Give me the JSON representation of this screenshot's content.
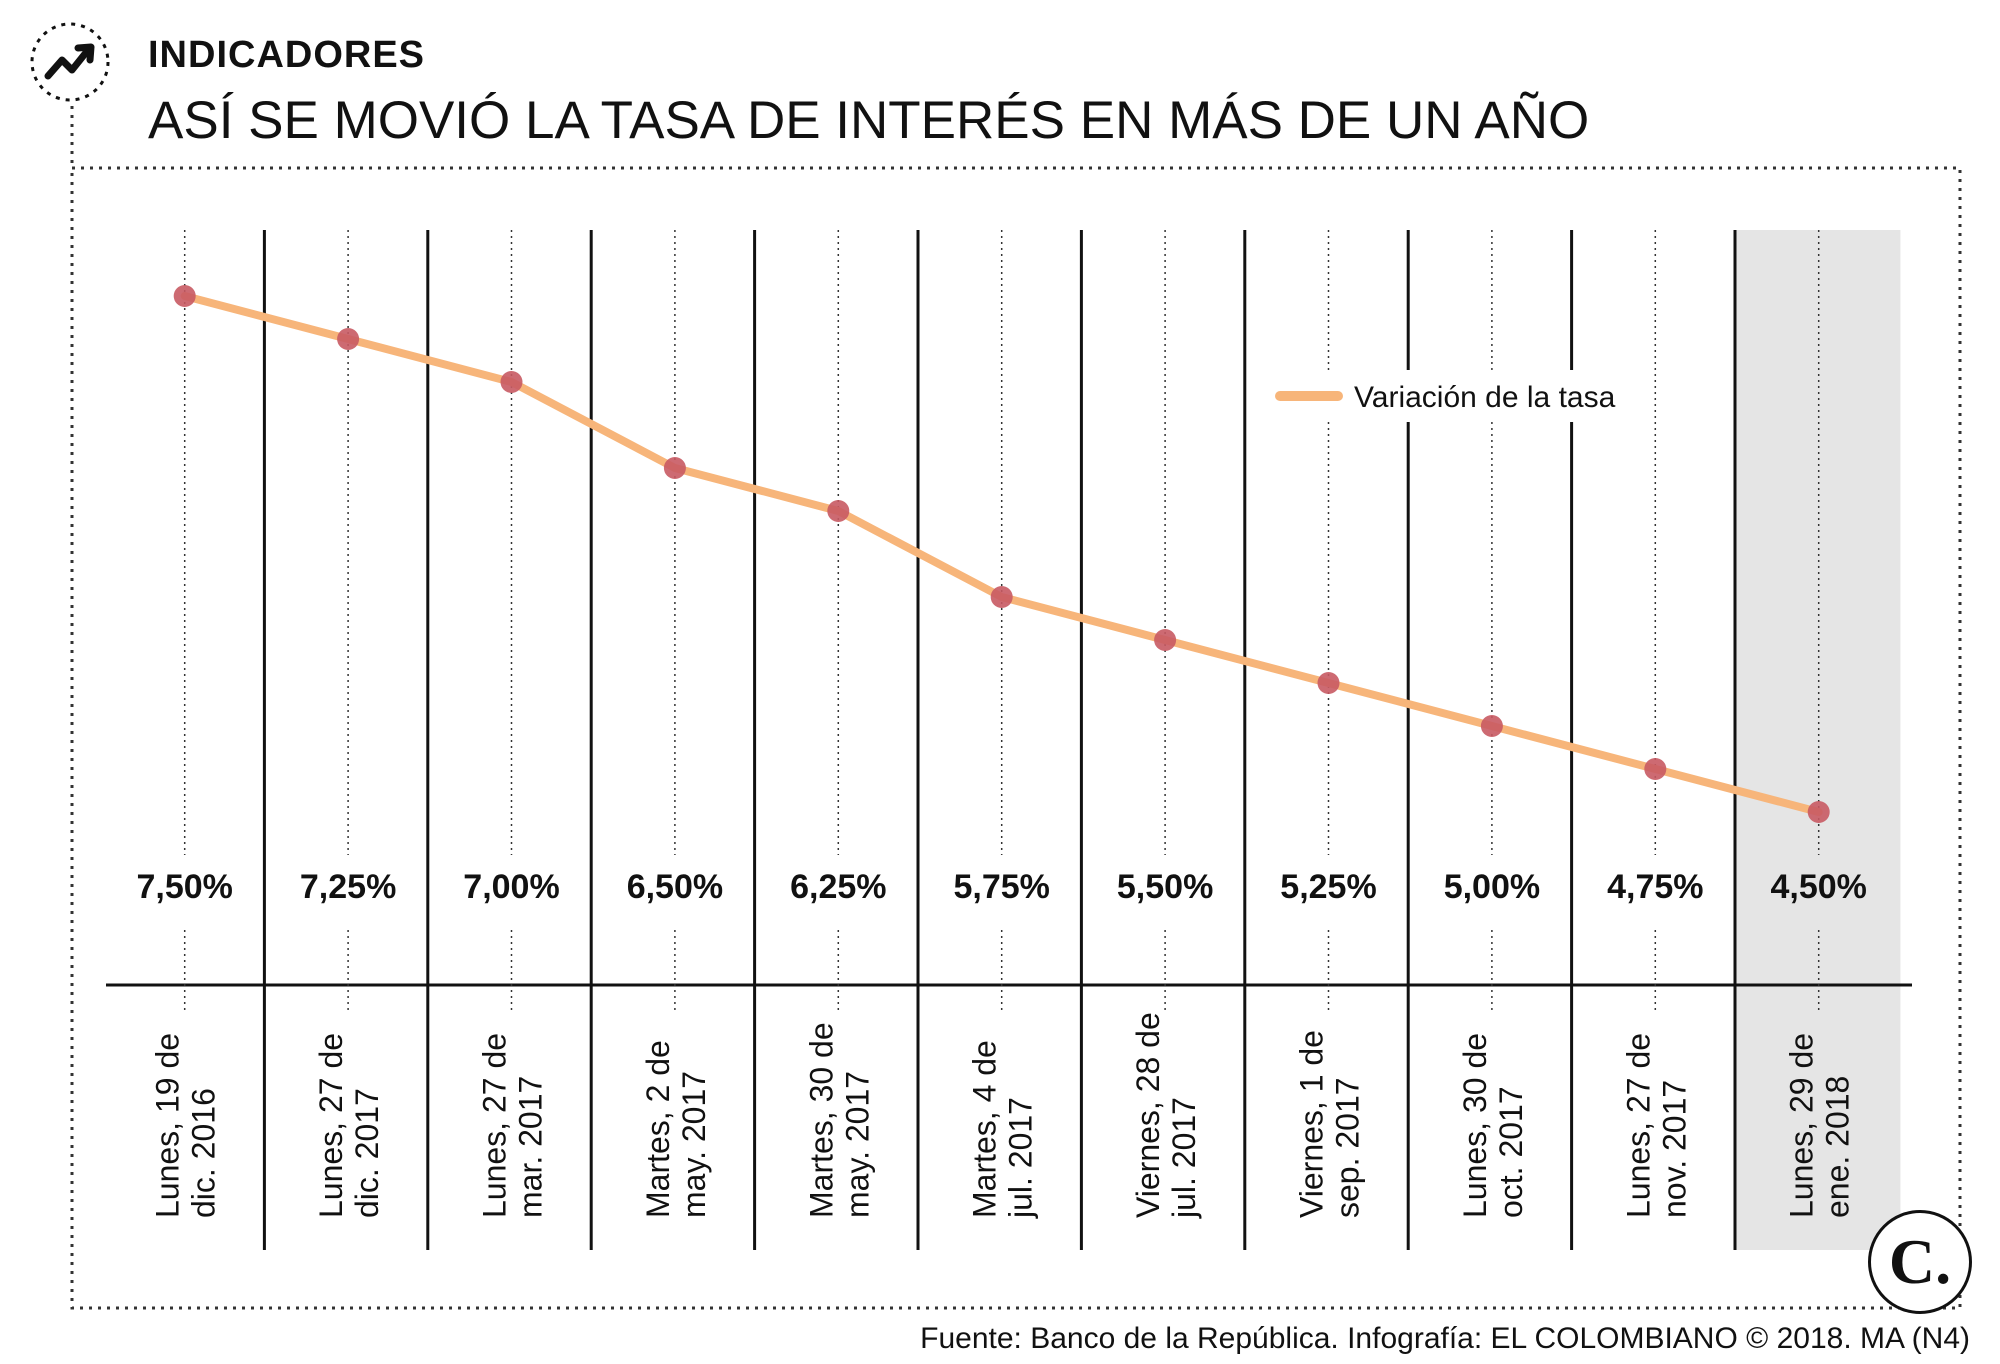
{
  "header": {
    "kicker": "INDICADORES",
    "title": "ASÍ SE MOVIÓ LA TASA DE INTERÉS EN MÁS DE UN AÑO",
    "icon": "trend-arrow-icon"
  },
  "legend": {
    "label": "Variación de la tasa"
  },
  "source": "Fuente: Banco de la República. Infografía: EL COLOMBIANO © 2018. MA (N4)",
  "logo": {
    "text": "C."
  },
  "colors": {
    "line": "#F7B57A",
    "marker": "#C85A63",
    "highlight": "#E5E5E5",
    "dotted": "#333333"
  },
  "chart_data": {
    "type": "line",
    "title": "ASÍ SE MOVIÓ LA TASA DE INTERÉS EN MÁS DE UN AÑO",
    "series": [
      {
        "name": "Variación de la tasa",
        "values": [
          7.5,
          7.25,
          7.0,
          6.5,
          6.25,
          5.75,
          5.5,
          5.25,
          5.0,
          4.75,
          4.5
        ]
      }
    ],
    "value_labels": [
      "7,50%",
      "7,25%",
      "7,00%",
      "6,50%",
      "6,25%",
      "5,75%",
      "5,50%",
      "5,25%",
      "5,00%",
      "4,75%",
      "4,50%"
    ],
    "categories": [
      [
        "Lunes, 19 de",
        "dic. 2016"
      ],
      [
        "Lunes, 27 de",
        "dic. 2017"
      ],
      [
        "Lunes, 27 de",
        "mar. 2017"
      ],
      [
        "Martes, 2 de",
        "may. 2017"
      ],
      [
        "Martes, 30 de",
        "may. 2017"
      ],
      [
        "Martes, 4 de",
        "jul. 2017"
      ],
      [
        "Viernes, 28 de",
        "jul. 2017"
      ],
      [
        "Viernes, 1 de",
        "sep. 2017"
      ],
      [
        "Lunes, 30 de",
        "oct. 2017"
      ],
      [
        "Lunes, 27 de",
        "nov. 2017"
      ],
      [
        "Lunes, 29 de",
        "ene. 2018"
      ]
    ],
    "highlight_index": 10,
    "ylim": [
      4.2,
      7.8
    ],
    "legend_position": "top-right"
  }
}
